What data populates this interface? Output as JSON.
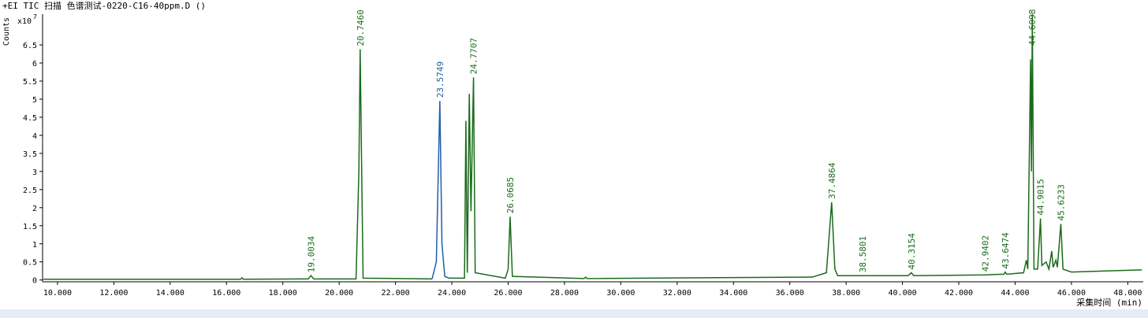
{
  "chart_data": {
    "type": "line",
    "title": "+EI TIC 扫描 色谱测试-0220-C16-40ppm.D  ()",
    "y_label": "Counts",
    "y_multiplier": "x10",
    "y_exponent": 7,
    "x_label": "采集时间 (min)",
    "xlim": [
      9.47,
      48.55
    ],
    "ylim": [
      -0.05,
      7.35
    ],
    "xticks": [
      {
        "value": 10,
        "label": "10.000"
      },
      {
        "value": 12,
        "label": "12.000"
      },
      {
        "value": 14,
        "label": "14.000"
      },
      {
        "value": 16,
        "label": "16.000"
      },
      {
        "value": 18,
        "label": "18.000"
      },
      {
        "value": 20,
        "label": "20.000"
      },
      {
        "value": 22,
        "label": "22.000"
      },
      {
        "value": 24,
        "label": "24.000"
      },
      {
        "value": 26,
        "label": "26.000"
      },
      {
        "value": 28,
        "label": "28.000"
      },
      {
        "value": 30,
        "label": "30.000"
      },
      {
        "value": 32,
        "label": "32.000"
      },
      {
        "value": 34,
        "label": "34.000"
      },
      {
        "value": 36,
        "label": "36.000"
      },
      {
        "value": 38,
        "label": "38.000"
      },
      {
        "value": 40,
        "label": "40.000"
      },
      {
        "value": 42,
        "label": "42.000"
      },
      {
        "value": 44,
        "label": "44.000"
      },
      {
        "value": 46,
        "label": "46.000"
      },
      {
        "value": 48,
        "label": "48.000"
      }
    ],
    "yticks": [
      0,
      0.5,
      1,
      1.5,
      2,
      2.5,
      3,
      3.5,
      4,
      4.5,
      5,
      5.5,
      6,
      6.5
    ],
    "series": [
      {
        "color": "#1a6b1a",
        "x": [
          9.5,
          16.5,
          16.55,
          16.6,
          18.9,
          19.0,
          19.1,
          20.6,
          20.7,
          20.746,
          20.8,
          20.85,
          23.3,
          null,
          23.9,
          24.45,
          24.5,
          24.55,
          24.62,
          24.68,
          24.77,
          24.83,
          25.9,
          26.0,
          26.07,
          26.15,
          28.7,
          28.75,
          28.8,
          36.8,
          37.3,
          37.486,
          37.6,
          37.7,
          38.58,
          40.2,
          40.315,
          40.4,
          42.94,
          43.6,
          43.647,
          43.7,
          44.3,
          44.4,
          44.45,
          44.55,
          44.58,
          44.61,
          44.67,
          44.8,
          44.9,
          44.95,
          45.1,
          45.2,
          45.3,
          45.35,
          45.45,
          45.5,
          45.623,
          45.7,
          46.0,
          48.5
        ],
        "values": [
          0.02,
          0.02,
          0.06,
          0.02,
          0.03,
          0.12,
          0.03,
          0.03,
          3.0,
          6.38,
          3.0,
          0.05,
          0.03,
          null,
          0.05,
          0.05,
          4.4,
          0.2,
          5.15,
          1.9,
          5.6,
          0.2,
          0.05,
          0.3,
          1.75,
          0.1,
          0.04,
          0.08,
          0.04,
          0.08,
          0.2,
          2.15,
          0.3,
          0.12,
          0.12,
          0.12,
          0.2,
          0.12,
          0.14,
          0.16,
          0.22,
          0.16,
          0.2,
          0.55,
          0.3,
          6.1,
          3.0,
          7.35,
          0.3,
          0.3,
          1.7,
          0.4,
          0.5,
          0.3,
          0.8,
          0.35,
          0.55,
          0.35,
          1.55,
          0.3,
          0.22,
          0.28
        ],
        "peaks": [
          {
            "value": 19.0034,
            "label": "19.0034"
          },
          {
            "value": 20.746,
            "label": "20.7460"
          },
          {
            "value": 24.7707,
            "label": "24.7707"
          },
          {
            "value": 26.0685,
            "label": "26.0685"
          },
          {
            "value": 37.4864,
            "label": "37.4864"
          },
          {
            "value": 38.5801,
            "label": "38.5801"
          },
          {
            "value": 40.3154,
            "label": "40.3154"
          },
          {
            "value": 42.9402,
            "label": "42.9402"
          },
          {
            "value": 43.6474,
            "label": "43.6474"
          },
          {
            "value": 44.6098,
            "label": "44.6098"
          },
          {
            "value": 44.9015,
            "label": "44.9015"
          },
          {
            "value": 45.6233,
            "label": "45.6233"
          }
        ]
      },
      {
        "color": "#1f5fa8",
        "x": [
          23.3,
          23.45,
          23.575,
          23.65,
          23.75,
          23.9
        ],
        "values": [
          0.03,
          0.5,
          4.95,
          1.0,
          0.1,
          0.05
        ],
        "peaks": [
          {
            "value": 23.5749,
            "label": "23.5749"
          }
        ]
      }
    ]
  }
}
